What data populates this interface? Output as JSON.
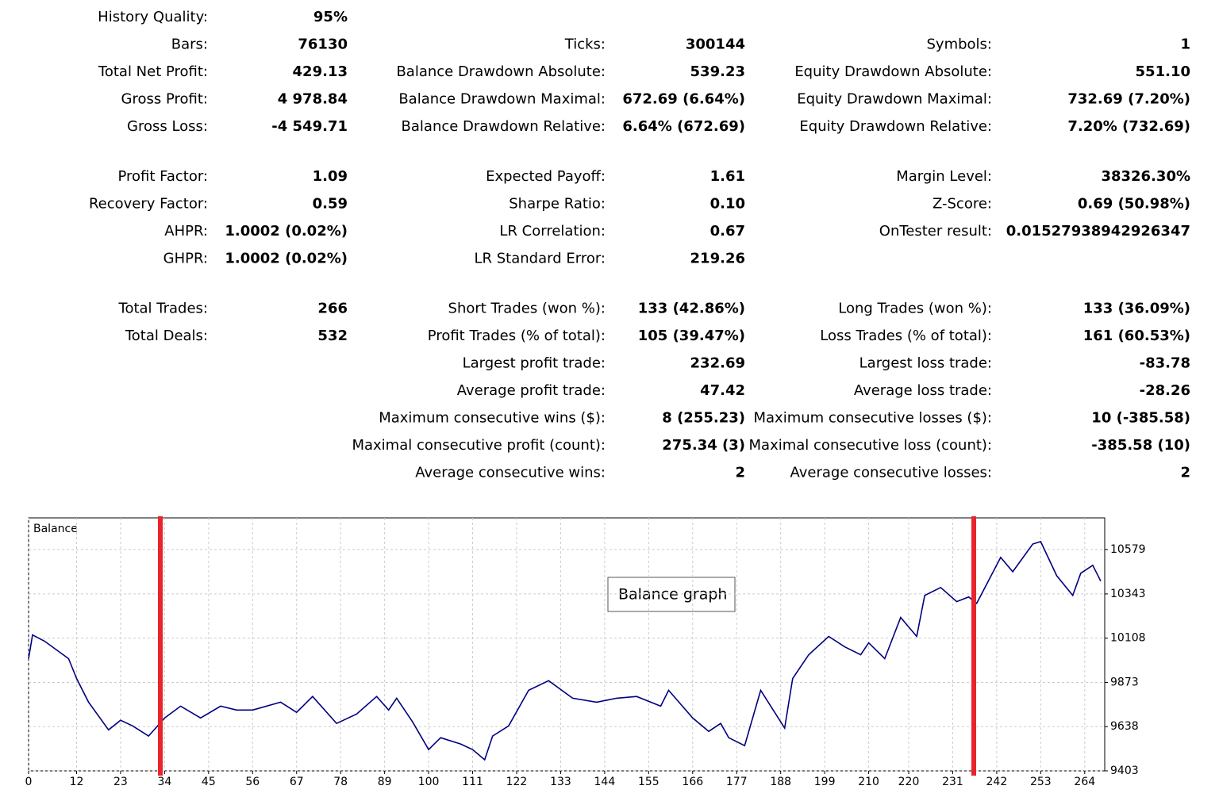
{
  "stats": {
    "sections": [
      [
        [
          {
            "label": "History Quality:",
            "value": "95%"
          }
        ]
      ],
      [
        [
          {
            "label": "Bars:",
            "value": "76130"
          },
          {
            "label": "Total Net Profit:",
            "value": "429.13"
          },
          {
            "label": "Gross Profit:",
            "value": "4 978.84"
          },
          {
            "label": "Gross Loss:",
            "value": "-4 549.71"
          }
        ],
        [
          {
            "label": "Ticks:",
            "value": "300144"
          },
          {
            "label": "Balance Drawdown Absolute:",
            "value": "539.23"
          },
          {
            "label": "Balance Drawdown Maximal:",
            "value": "672.69 (6.64%)"
          },
          {
            "label": "Balance Drawdown Relative:",
            "value": "6.64% (672.69)"
          }
        ],
        [
          {
            "label": "Symbols:",
            "value": "1"
          },
          {
            "label": "Equity Drawdown Absolute:",
            "value": "551.10"
          },
          {
            "label": "Equity Drawdown Maximal:",
            "value": "732.69 (7.20%)"
          },
          {
            "label": "Equity Drawdown Relative:",
            "value": "7.20% (732.69)"
          }
        ]
      ],
      [
        [
          {
            "label": "Profit Factor:",
            "value": "1.09"
          },
          {
            "label": "Recovery Factor:",
            "value": "0.59"
          },
          {
            "label": "AHPR:",
            "value": "1.0002 (0.02%)"
          },
          {
            "label": "GHPR:",
            "value": "1.0002 (0.02%)"
          }
        ],
        [
          {
            "label": "Expected Payoff:",
            "value": "1.61"
          },
          {
            "label": "Sharpe Ratio:",
            "value": "0.10"
          },
          {
            "label": "LR Correlation:",
            "value": "0.67"
          },
          {
            "label": "LR Standard Error:",
            "value": "219.26"
          }
        ],
        [
          {
            "label": "Margin Level:",
            "value": "38326.30%"
          },
          {
            "label": "Z-Score:",
            "value": "0.69 (50.98%)"
          },
          {
            "label": "OnTester result:",
            "value": "0.01527938942926347"
          }
        ]
      ],
      [
        [
          {
            "label": "Total Trades:",
            "value": "266"
          },
          {
            "label": "Total Deals:",
            "value": "532"
          }
        ],
        [
          {
            "label": "Short Trades (won %):",
            "value": "133 (42.86%)"
          },
          {
            "label": "Profit Trades (% of total):",
            "value": "105 (39.47%)"
          },
          {
            "label": "Largest profit trade:",
            "value": "232.69"
          },
          {
            "label": "Average profit trade:",
            "value": "47.42"
          },
          {
            "label": "Maximum consecutive wins ($):",
            "value": "8 (255.23)"
          },
          {
            "label": "Maximal consecutive profit (count):",
            "value": "275.34 (3)"
          },
          {
            "label": "Average consecutive wins:",
            "value": "2"
          }
        ],
        [
          {
            "label": "Long Trades (won %):",
            "value": "133 (36.09%)"
          },
          {
            "label": "Loss Trades (% of total):",
            "value": "161 (60.53%)"
          },
          {
            "label": "Largest loss trade:",
            "value": "-83.78"
          },
          {
            "label": "Average loss trade:",
            "value": "-28.26"
          },
          {
            "label": "Maximum consecutive losses ($):",
            "value": "10 (-385.58)"
          },
          {
            "label": "Maximal consecutive loss (count):",
            "value": "-385.58 (10)"
          },
          {
            "label": "Average consecutive losses:",
            "value": "2"
          }
        ]
      ]
    ]
  },
  "chart_data": {
    "type": "line",
    "title": "Balance",
    "annotation": "Balance graph",
    "color": "#000080",
    "grid": true,
    "x": [
      0,
      1,
      4,
      10,
      12,
      15,
      20,
      23,
      26,
      30,
      34,
      38,
      43,
      48,
      52,
      56,
      63,
      67,
      71,
      77,
      82,
      87,
      90,
      92,
      96,
      100,
      103,
      108,
      111,
      114,
      116,
      120,
      125,
      130,
      136,
      142,
      147,
      152,
      158,
      160,
      166,
      170,
      173,
      175,
      179,
      183,
      189,
      191,
      195,
      200,
      204,
      208,
      210,
      214,
      218,
      222,
      224,
      228,
      232,
      235,
      237,
      243,
      246,
      251,
      253,
      257,
      261,
      263,
      266,
      268
    ],
    "values": [
      9999,
      10125,
      10092,
      9999,
      9894,
      9768,
      9621,
      9672,
      9642,
      9588,
      9684,
      9747,
      9684,
      9747,
      9726,
      9726,
      9768,
      9714,
      9798,
      9655,
      9705,
      9798,
      9726,
      9789,
      9663,
      9516,
      9579,
      9546,
      9516,
      9462,
      9588,
      9642,
      9831,
      9882,
      9789,
      9768,
      9789,
      9798,
      9747,
      9831,
      9684,
      9613,
      9655,
      9579,
      9537,
      9831,
      9630,
      9894,
      10020,
      10117,
      10062,
      10020,
      10083,
      9999,
      10218,
      10117,
      10335,
      10377,
      10302,
      10327,
      10293,
      10537,
      10461,
      10608,
      10621,
      10440,
      10335,
      10453,
      10495,
      10411
    ],
    "xlim": [
      0,
      269
    ],
    "ylim": [
      9403,
      10747
    ],
    "xticks": [
      0,
      12,
      23,
      34,
      45,
      56,
      67,
      78,
      89,
      100,
      111,
      122,
      133,
      144,
      155,
      166,
      177,
      188,
      199,
      210,
      220,
      231,
      242,
      253,
      264
    ],
    "yticks": [
      9403,
      9638,
      9873,
      10108,
      10343,
      10579
    ]
  }
}
